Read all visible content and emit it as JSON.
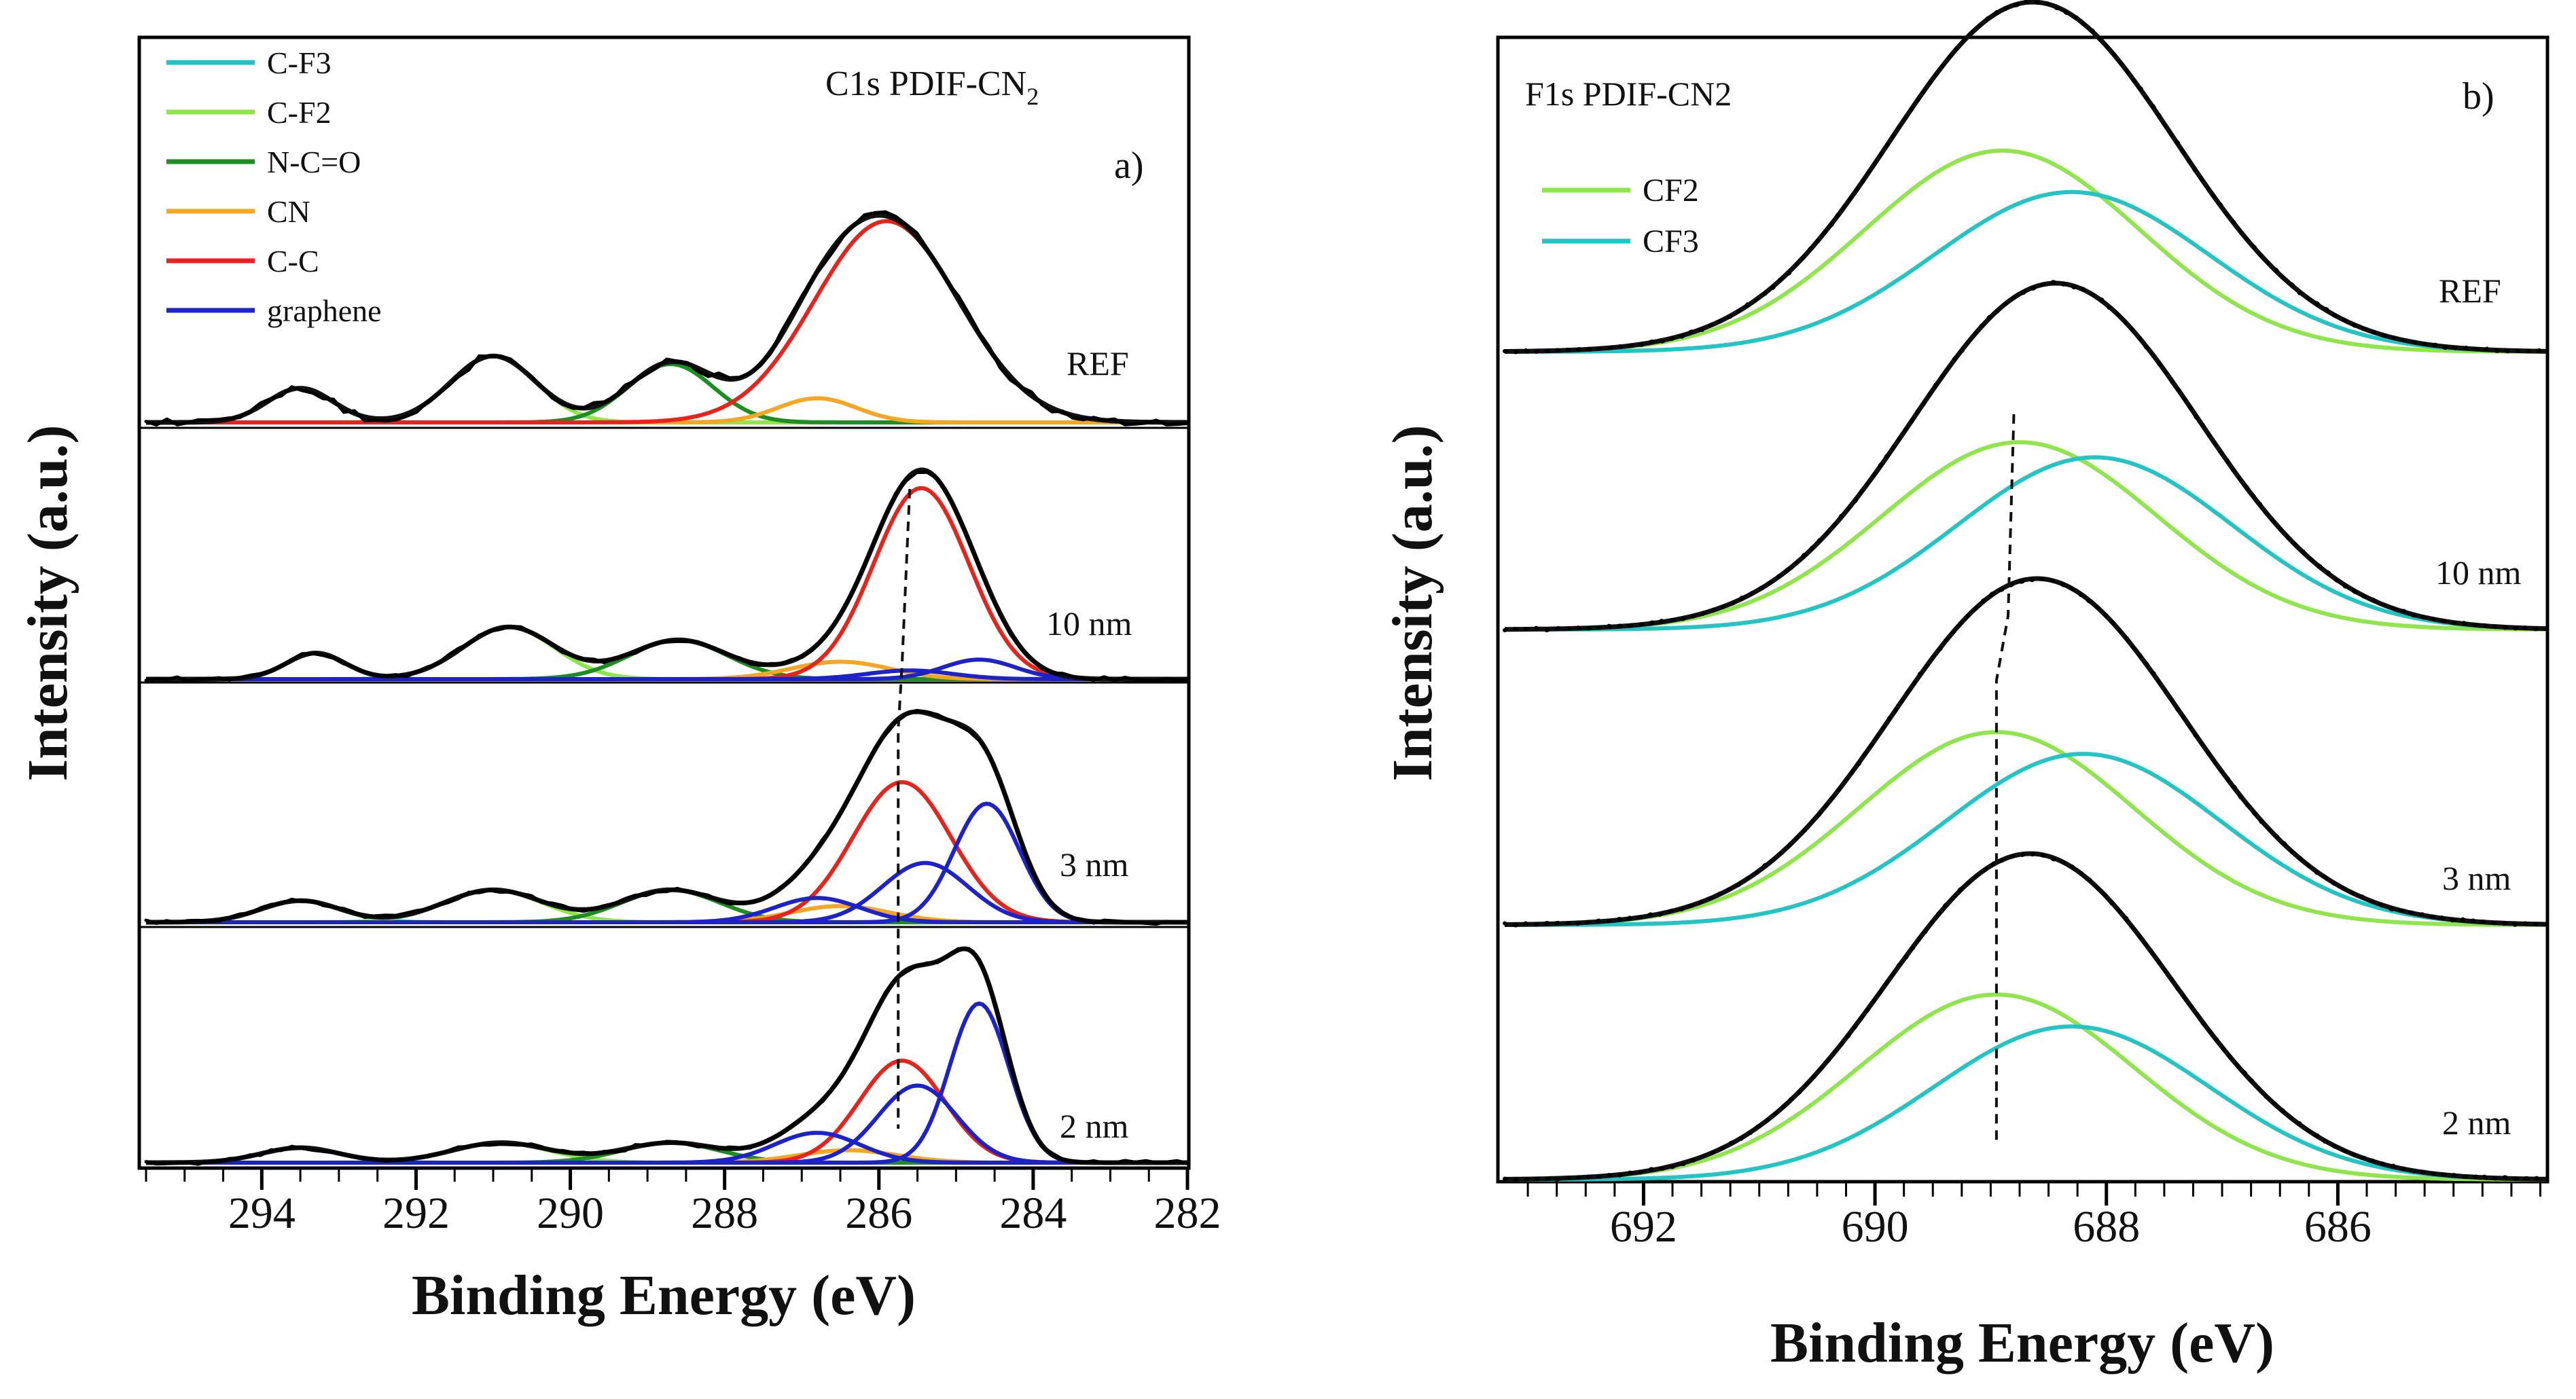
{
  "chart_data": [
    {
      "panel_label": "a)",
      "type": "line",
      "title": "C1s PDIF-CN",
      "title_subscript": "2",
      "xlabel": "Binding Energy (eV)",
      "ylabel": "Intensity (a.u.)",
      "xlim": [
        295.5,
        282
      ],
      "x_reversed": true,
      "xticks": [
        294,
        292,
        290,
        288,
        286,
        284,
        282
      ],
      "xtick_labels": [
        "294",
        "292",
        "290",
        "288",
        "286",
        "284",
        "282"
      ],
      "legend": [
        {
          "name": "C-F3",
          "color": "#22c4c4"
        },
        {
          "name": "C-F2",
          "color": "#8ee64a"
        },
        {
          "name": "N-C=O",
          "color": "#1d8f22"
        },
        {
          "name": "CN",
          "color": "#f5a623"
        },
        {
          "name": "C-C",
          "color": "#e8231c"
        },
        {
          "name": "graphene",
          "color": "#1d22c9"
        }
      ],
      "spectra": [
        {
          "label": "REF",
          "components": [
            {
              "name": "C-F3",
              "color": "#22c4c4",
              "center": 293.5,
              "fwhm": 1.0,
              "amplitude": 0.17
            },
            {
              "name": "C-F2",
              "color": "#8ee64a",
              "center": 291.0,
              "fwhm": 1.3,
              "amplitude": 0.33
            },
            {
              "name": "N-C=O",
              "color": "#1d8f22",
              "center": 288.7,
              "fwhm": 1.3,
              "amplitude": 0.29
            },
            {
              "name": "CN",
              "color": "#f5a623",
              "center": 286.8,
              "fwhm": 1.2,
              "amplitude": 0.12
            },
            {
              "name": "C-C",
              "color": "#e8231c",
              "center": 285.9,
              "fwhm": 2.2,
              "amplitude": 1.0
            }
          ]
        },
        {
          "label": "10 nm",
          "components": [
            {
              "name": "C-F3",
              "color": "#22c4c4",
              "center": 293.3,
              "fwhm": 0.9,
              "amplitude": 0.12
            },
            {
              "name": "C-F2",
              "color": "#8ee64a",
              "center": 290.8,
              "fwhm": 1.4,
              "amplitude": 0.24
            },
            {
              "name": "N-C=O",
              "color": "#1d8f22",
              "center": 288.6,
              "fwhm": 1.5,
              "amplitude": 0.18
            },
            {
              "name": "CN",
              "color": "#f5a623",
              "center": 286.5,
              "fwhm": 1.5,
              "amplitude": 0.08
            },
            {
              "name": "C-C",
              "color": "#e8231c",
              "center": 285.45,
              "fwhm": 1.45,
              "amplitude": 0.88
            },
            {
              "name": "graphene",
              "color": "#1d22c9",
              "center": 285.6,
              "fwhm": 1.3,
              "amplitude": 0.04
            },
            {
              "name": "graphene",
              "color": "#1d22c9",
              "center": 284.7,
              "fwhm": 1.1,
              "amplitude": 0.09
            }
          ]
        },
        {
          "label": "3 nm",
          "components": [
            {
              "name": "C-F3",
              "color": "#22c4c4",
              "center": 293.5,
              "fwhm": 1.2,
              "amplitude": 0.08
            },
            {
              "name": "C-F2",
              "color": "#8ee64a",
              "center": 291.0,
              "fwhm": 1.5,
              "amplitude": 0.12
            },
            {
              "name": "N-C=O",
              "color": "#1d8f22",
              "center": 288.7,
              "fwhm": 1.5,
              "amplitude": 0.12
            },
            {
              "name": "CN",
              "color": "#f5a623",
              "center": 286.5,
              "fwhm": 1.5,
              "amplitude": 0.06
            },
            {
              "name": "C-C",
              "color": "#e8231c",
              "center": 285.7,
              "fwhm": 1.5,
              "amplitude": 0.52
            },
            {
              "name": "graphene",
              "color": "#1d22c9",
              "center": 286.8,
              "fwhm": 1.3,
              "amplitude": 0.09
            },
            {
              "name": "graphene",
              "color": "#1d22c9",
              "center": 285.4,
              "fwhm": 1.3,
              "amplitude": 0.22
            },
            {
              "name": "graphene",
              "color": "#1d22c9",
              "center": 284.6,
              "fwhm": 1.0,
              "amplitude": 0.44
            }
          ]
        },
        {
          "label": "2 nm",
          "components": [
            {
              "name": "C-F3",
              "color": "#22c4c4",
              "center": 293.5,
              "fwhm": 1.2,
              "amplitude": 0.06
            },
            {
              "name": "C-F2",
              "color": "#8ee64a",
              "center": 290.9,
              "fwhm": 1.5,
              "amplitude": 0.08
            },
            {
              "name": "N-C=O",
              "color": "#1d8f22",
              "center": 288.7,
              "fwhm": 1.5,
              "amplitude": 0.08
            },
            {
              "name": "CN",
              "color": "#f5a623",
              "center": 286.4,
              "fwhm": 1.5,
              "amplitude": 0.05
            },
            {
              "name": "C-C",
              "color": "#e8231c",
              "center": 285.7,
              "fwhm": 1.3,
              "amplitude": 0.41
            },
            {
              "name": "graphene",
              "color": "#1d22c9",
              "center": 286.8,
              "fwhm": 1.3,
              "amplitude": 0.12
            },
            {
              "name": "graphene",
              "color": "#1d22c9",
              "center": 285.5,
              "fwhm": 1.2,
              "amplitude": 0.31
            },
            {
              "name": "graphene",
              "color": "#1d22c9",
              "center": 284.7,
              "fwhm": 0.9,
              "amplitude": 0.64
            }
          ]
        }
      ],
      "guide_line_energies": [
        285.6,
        285.7,
        285.75,
        285.75
      ]
    },
    {
      "panel_label": "b)",
      "type": "line",
      "title": "F1s PDIF-CN2",
      "xlabel": "Binding Energy (eV)",
      "ylabel": "Intensity (a.u.)",
      "xlim": [
        693.2,
        684.2
      ],
      "x_reversed": true,
      "xticks": [
        692,
        690,
        688,
        686
      ],
      "xtick_labels": [
        "692",
        "690",
        "688",
        "686"
      ],
      "legend": [
        {
          "name": "CF2",
          "color": "#8ee64a"
        },
        {
          "name": "CF3",
          "color": "#22c4c4"
        }
      ],
      "spectra": [
        {
          "label": "REF",
          "components": [
            {
              "name": "CF2",
              "color": "#8ee64a",
              "center": 688.9,
              "fwhm": 2.8,
              "amplitude": 0.68
            },
            {
              "name": "CF3",
              "color": "#22c4c4",
              "center": 688.3,
              "fwhm": 2.8,
              "amplitude": 0.54
            }
          ]
        },
        {
          "label": "10 nm",
          "components": [
            {
              "name": "CF2",
              "color": "#8ee64a",
              "center": 688.75,
              "fwhm": 2.8,
              "amplitude": 0.62
            },
            {
              "name": "CF3",
              "color": "#22c4c4",
              "center": 688.1,
              "fwhm": 2.8,
              "amplitude": 0.57
            }
          ]
        },
        {
          "label": "3 nm",
          "components": [
            {
              "name": "CF2",
              "color": "#8ee64a",
              "center": 688.95,
              "fwhm": 2.8,
              "amplitude": 0.62
            },
            {
              "name": "CF3",
              "color": "#22c4c4",
              "center": 688.2,
              "fwhm": 2.8,
              "amplitude": 0.55
            }
          ]
        },
        {
          "label": "2 nm",
          "components": [
            {
              "name": "CF2",
              "color": "#8ee64a",
              "center": 688.95,
              "fwhm": 2.8,
              "amplitude": 0.58
            },
            {
              "name": "CF3",
              "color": "#22c4c4",
              "center": 688.3,
              "fwhm": 2.8,
              "amplitude": 0.48
            }
          ]
        }
      ],
      "guide_line_energies": [
        688.8,
        688.85,
        688.95,
        688.95
      ]
    }
  ]
}
